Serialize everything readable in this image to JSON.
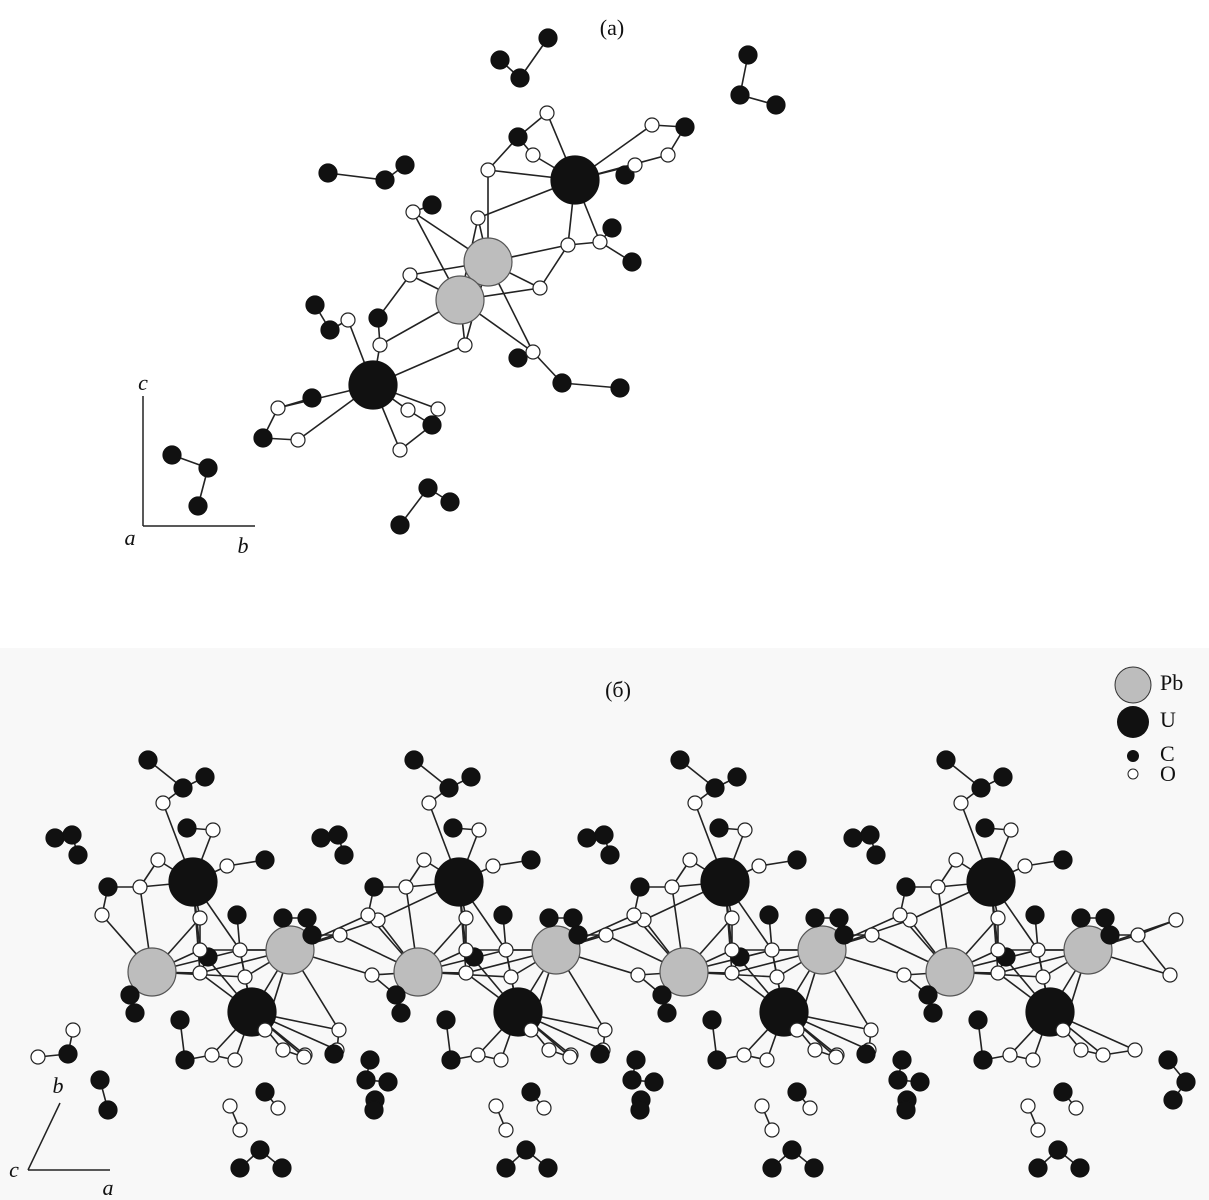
{
  "panel_a": {
    "label": "(a)",
    "axes": {
      "vertical": "c",
      "origin": "a",
      "horizontal": "b"
    }
  },
  "panel_b": {
    "label": "(б)",
    "axes": {
      "vertical": "b",
      "origin": "c",
      "horizontal": "a"
    },
    "legend": [
      "Pb",
      "U",
      "C",
      "O"
    ]
  }
}
